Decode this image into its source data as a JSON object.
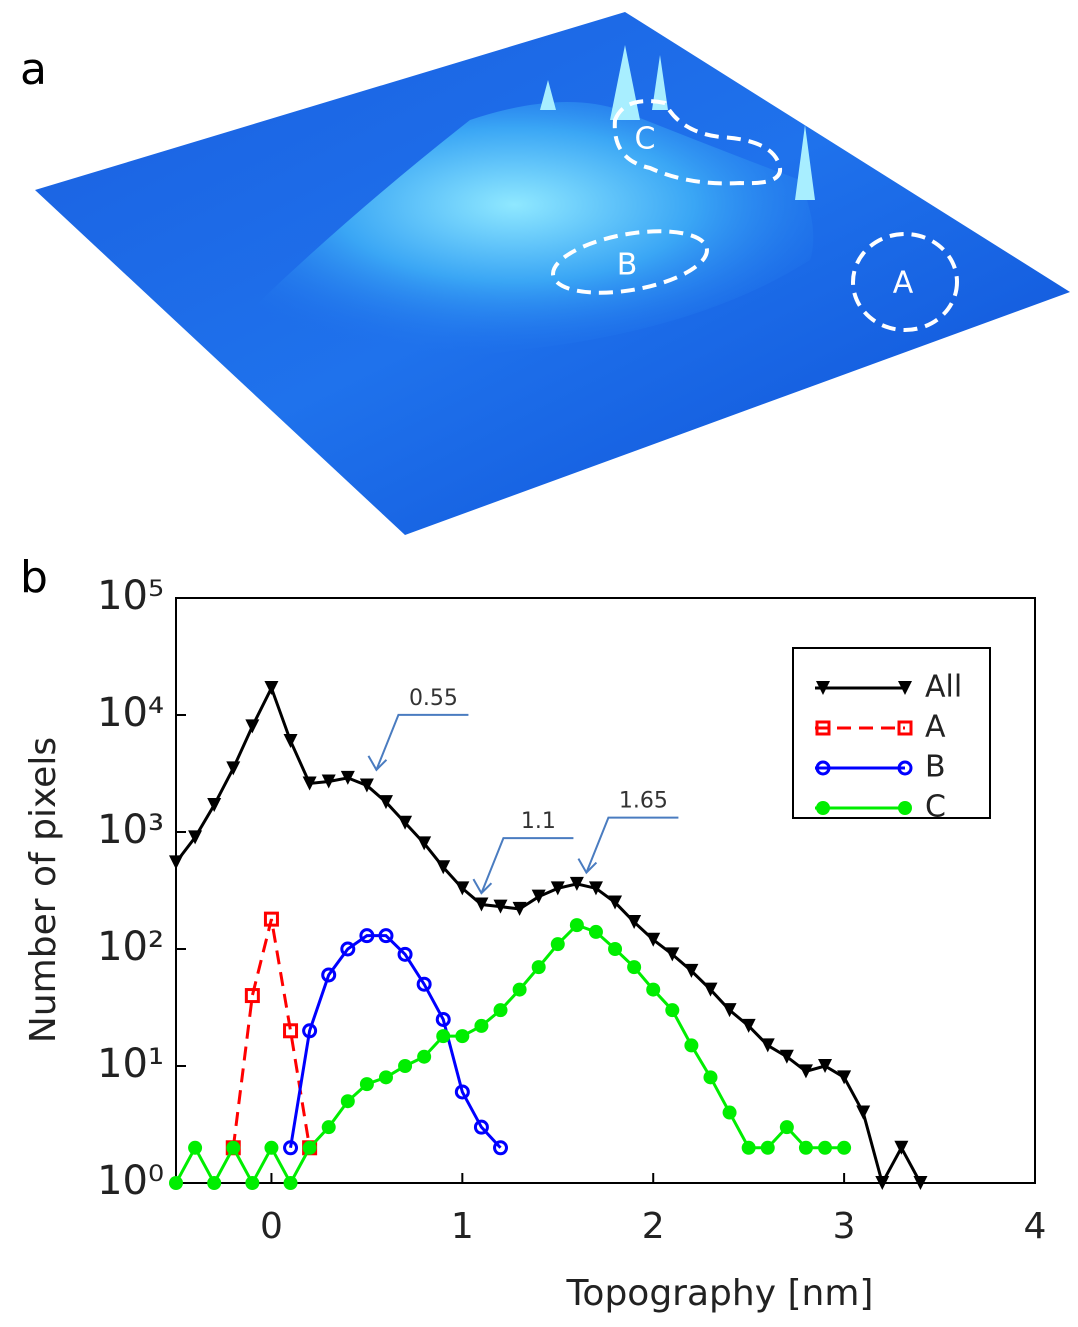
{
  "panel_a": {
    "label": "a",
    "regions": [
      "A",
      "B",
      "C"
    ]
  },
  "chart_data": {
    "type": "line",
    "panel_label": "b",
    "xlabel": "Topography [nm]",
    "ylabel": "Number of pixels",
    "x": [
      -0.5,
      -0.4,
      -0.3,
      -0.2,
      -0.1,
      0,
      0.1,
      0.2,
      0.3,
      0.4,
      0.5,
      0.6,
      0.7,
      0.8,
      0.9,
      1.0,
      1.1,
      1.2,
      1.3,
      1.4,
      1.5,
      1.6,
      1.7,
      1.8,
      1.9,
      2.0,
      2.1,
      2.2,
      2.3,
      2.4,
      2.5,
      2.6,
      2.7,
      2.8,
      2.9,
      3.0,
      3.1,
      3.2,
      3.3,
      3.4
    ],
    "series": [
      {
        "name": "All",
        "color": "#000000",
        "marker": "triangle-down",
        "dashed": false,
        "values": [
          550,
          900,
          1700,
          3500,
          8000,
          17000,
          6000,
          2600,
          2700,
          2900,
          2500,
          1800,
          1200,
          800,
          500,
          330,
          240,
          230,
          220,
          280,
          330,
          360,
          330,
          250,
          170,
          120,
          90,
          65,
          45,
          30,
          22,
          15,
          12,
          9,
          10,
          8,
          4,
          1,
          2,
          1
        ]
      },
      {
        "name": "A",
        "color": "#ff0000",
        "marker": "square",
        "dashed": true,
        "values": [
          null,
          null,
          null,
          2,
          40,
          180,
          20,
          2,
          null,
          null,
          null,
          null,
          null,
          null,
          null,
          null,
          null,
          null,
          null,
          null,
          null,
          null,
          null,
          null,
          null,
          null,
          null,
          null,
          null,
          null,
          null,
          null,
          null,
          null,
          null,
          null,
          null,
          null,
          null,
          null
        ]
      },
      {
        "name": "B",
        "color": "#0000ff",
        "marker": "open-circle",
        "dashed": false,
        "values": [
          null,
          null,
          null,
          null,
          null,
          null,
          2,
          20,
          60,
          100,
          130,
          130,
          90,
          50,
          25,
          6,
          3,
          2,
          null,
          null,
          null,
          null,
          null,
          null,
          null,
          null,
          null,
          null,
          null,
          null,
          null,
          null,
          null,
          null,
          null,
          null,
          null,
          null,
          null,
          null
        ]
      },
      {
        "name": "C",
        "color": "#00ee00",
        "marker": "circle",
        "dashed": false,
        "values": [
          1,
          2,
          1,
          2,
          1,
          2,
          1,
          2,
          3,
          5,
          7,
          8,
          10,
          12,
          18,
          18,
          22,
          30,
          45,
          70,
          110,
          160,
          140,
          100,
          70,
          45,
          30,
          15,
          8,
          4,
          2,
          2,
          3,
          2,
          2,
          2,
          null,
          null,
          null,
          null
        ]
      }
    ],
    "xlim": [
      -0.5,
      4
    ],
    "xticks": [
      0,
      1,
      2,
      3,
      4
    ],
    "ylim": [
      1,
      100000
    ],
    "log_y": true,
    "yticks": [
      {
        "value": 1,
        "label": "10⁰"
      },
      {
        "value": 10,
        "label": "10¹"
      },
      {
        "value": 100,
        "label": "10²"
      },
      {
        "value": 1000,
        "label": "10³"
      },
      {
        "value": 10000,
        "label": "10⁴"
      },
      {
        "value": 100000,
        "label": "10⁵"
      }
    ],
    "legend": "upper right",
    "annotations": [
      {
        "text": "0.55",
        "x": 0.55,
        "y": 3400
      },
      {
        "text": "1.1",
        "x": 1.1,
        "y": 300
      },
      {
        "text": "1.65",
        "x": 1.65,
        "y": 450
      }
    ]
  }
}
